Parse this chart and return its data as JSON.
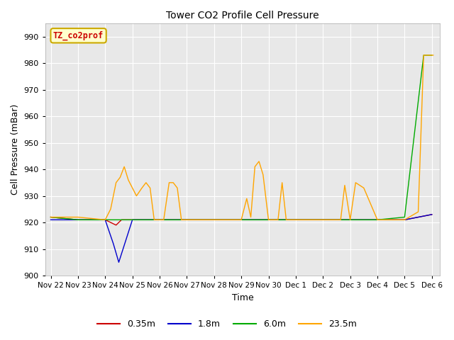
{
  "title": "Tower CO2 Profile Cell Pressure",
  "xlabel": "Time",
  "ylabel": "Cell Pressure (mBar)",
  "ylim": [
    900,
    995
  ],
  "yticks": [
    900,
    910,
    920,
    930,
    940,
    950,
    960,
    970,
    980,
    990
  ],
  "fig_bg_color": "#ffffff",
  "plot_bg_color": "#e8e8e8",
  "legend_label": "TZ_co2prof",
  "series": {
    "0.35m": {
      "color": "#cc0000",
      "x": [
        0,
        1,
        2,
        2.4,
        2.6,
        3,
        4,
        5,
        6,
        7,
        8,
        9,
        10,
        11,
        12,
        13,
        13.5,
        14
      ],
      "y": [
        922,
        921,
        921,
        919,
        921,
        921,
        921,
        921,
        921,
        921,
        921,
        921,
        921,
        921,
        921,
        921,
        922,
        923
      ]
    },
    "1.8m": {
      "color": "#0000cc",
      "x": [
        0,
        1,
        2,
        2.1,
        2.3,
        2.5,
        3,
        4,
        5,
        6,
        7,
        8,
        9,
        10,
        11,
        12,
        13,
        14
      ],
      "y": [
        921,
        921,
        921,
        918,
        912,
        905,
        921,
        921,
        921,
        921,
        921,
        921,
        921,
        921,
        921,
        921,
        921,
        923
      ]
    },
    "6.0m": {
      "color": "#00aa00",
      "x": [
        0,
        1,
        2,
        3,
        4,
        5,
        6,
        7,
        8,
        9,
        10,
        11,
        12,
        13,
        13.7,
        14
      ],
      "y": [
        922,
        921,
        921,
        921,
        921,
        921,
        921,
        921,
        921,
        921,
        921,
        921,
        921,
        922,
        983,
        983
      ]
    },
    "23.5m": {
      "color": "#ffa500",
      "x": [
        0,
        1,
        2,
        2.2,
        2.4,
        2.55,
        2.7,
        2.85,
        3.0,
        3.15,
        3.35,
        3.5,
        3.65,
        3.8,
        4.0,
        4.15,
        4.35,
        4.5,
        4.65,
        4.8,
        5.0,
        5.5,
        6.0,
        6.5,
        7.0,
        7.2,
        7.35,
        7.5,
        7.65,
        7.8,
        8.0,
        8.15,
        8.35,
        8.5,
        8.65,
        9.0,
        9.5,
        10.0,
        10.5,
        10.65,
        10.8,
        11.0,
        11.2,
        11.5,
        12.0,
        12.2,
        12.4,
        12.6,
        13.0,
        13.5,
        13.7,
        14.0,
        14.05
      ],
      "y": [
        922,
        922,
        921,
        925,
        935,
        937,
        941,
        936,
        933,
        930,
        933,
        935,
        933,
        921,
        921,
        921,
        935,
        935,
        933,
        921,
        921,
        921,
        921,
        921,
        921,
        929,
        922,
        941,
        943,
        938,
        921,
        921,
        921,
        935,
        921,
        921,
        921,
        921,
        921,
        921,
        934,
        921,
        935,
        933,
        921,
        921,
        921,
        921,
        921,
        924,
        983,
        983,
        983
      ]
    }
  },
  "xtick_labels": [
    "Nov 22",
    "Nov 23",
    "Nov 24",
    "Nov 25",
    "Nov 26",
    "Nov 27",
    "Nov 28",
    "Nov 29",
    "Nov 30",
    "Dec 1",
    "Dec 2",
    "Dec 3",
    "Dec 4",
    "Dec 5",
    "Dec 6"
  ],
  "xtick_positions": [
    0,
    1,
    2,
    3,
    4,
    5,
    6,
    7,
    8,
    9,
    10,
    11,
    12,
    13,
    14
  ]
}
